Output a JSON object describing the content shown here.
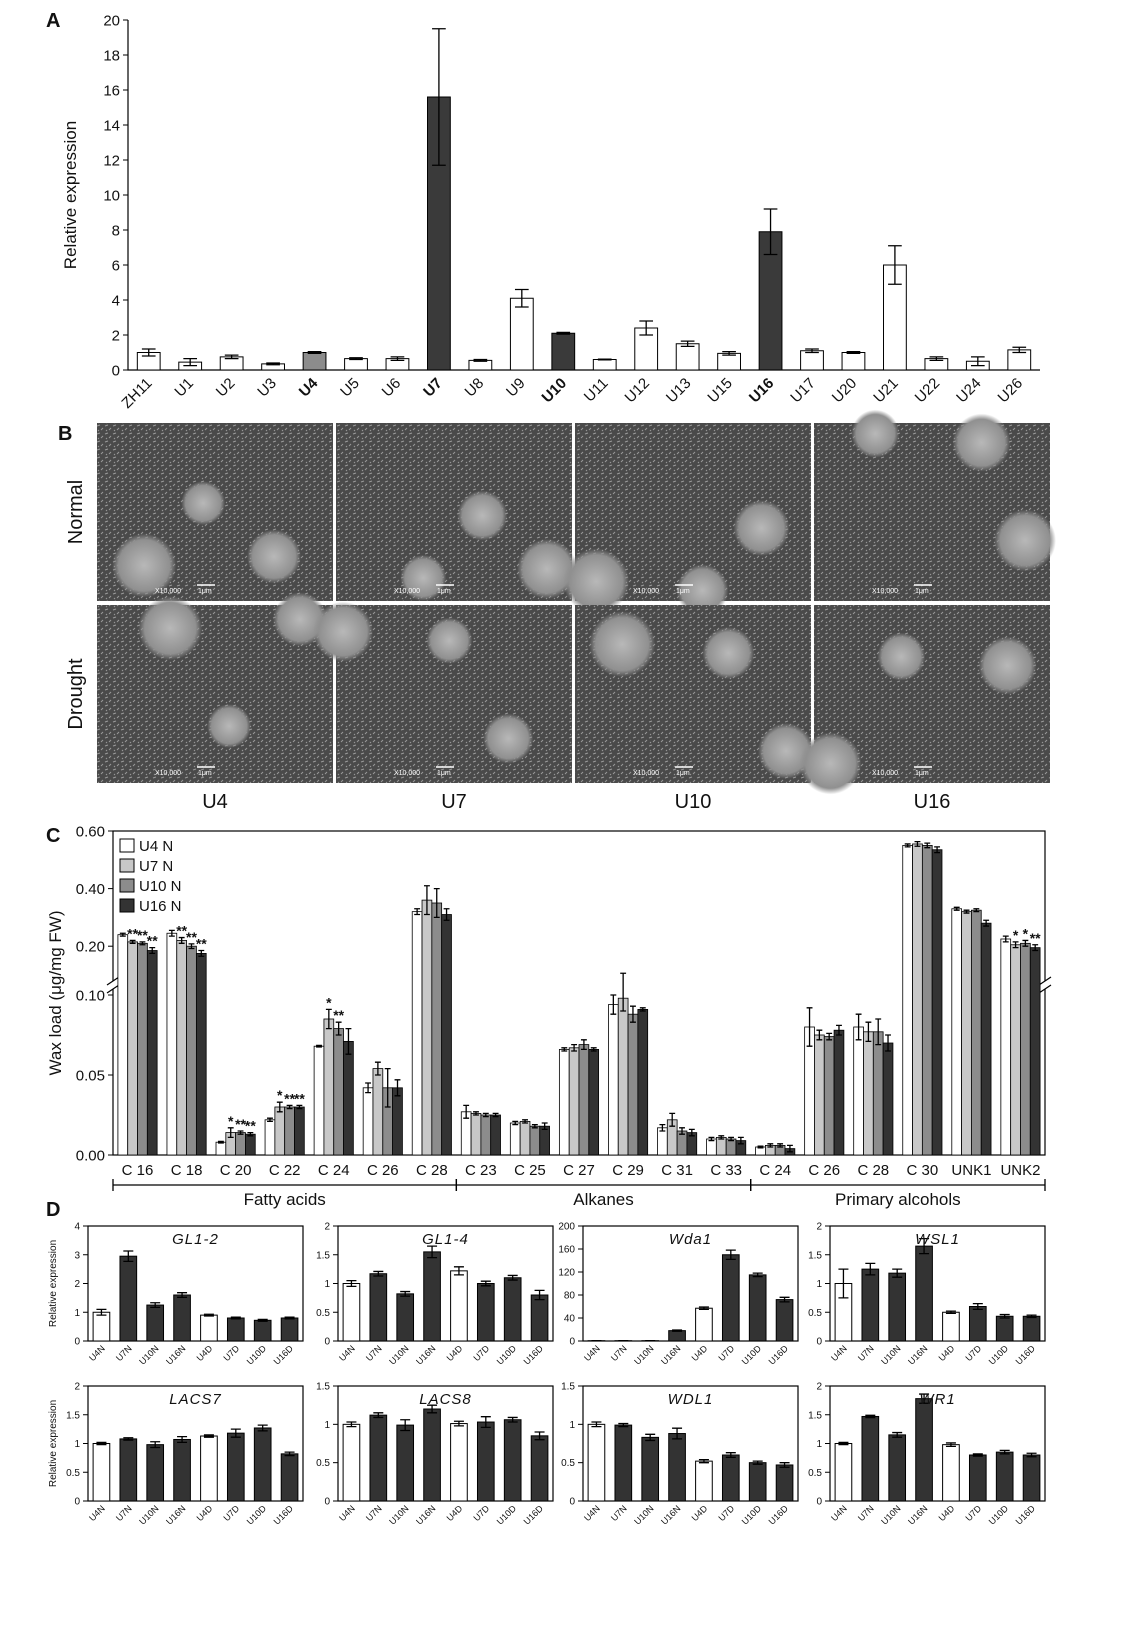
{
  "panel_labels": [
    "A",
    "B",
    "C",
    "D"
  ],
  "sem_images": {
    "rows": [
      "Normal",
      "Drought"
    ],
    "columns": [
      "U4",
      "U7",
      "U10",
      "U16"
    ],
    "magnification": "X10,000",
    "scale_bar": "1μm"
  },
  "chart_data": [
    {
      "type": "bar",
      "ylabel": "Relative expression",
      "categories": [
        "ZH11",
        "U1",
        "U2",
        "U3",
        "U4",
        "U5",
        "U6",
        "U7",
        "U8",
        "U9",
        "U10",
        "U11",
        "U12",
        "U13",
        "U15",
        "U16",
        "U17",
        "U20",
        "U21",
        "U22",
        "U24",
        "U26"
      ],
      "bold": [
        false,
        false,
        false,
        false,
        true,
        false,
        false,
        true,
        false,
        false,
        true,
        false,
        false,
        false,
        false,
        true,
        false,
        false,
        false,
        false,
        false,
        false
      ],
      "values": [
        1.0,
        0.45,
        0.75,
        0.35,
        1.0,
        0.65,
        0.65,
        15.6,
        0.55,
        4.1,
        2.1,
        0.6,
        2.4,
        1.5,
        0.95,
        7.9,
        1.1,
        1.0,
        6.0,
        0.65,
        0.5,
        1.15
      ],
      "errors": [
        0.2,
        0.2,
        0.1,
        0.05,
        0.05,
        0.05,
        0.1,
        3.9,
        0.05,
        0.5,
        0.05,
        0.02,
        0.4,
        0.15,
        0.1,
        1.3,
        0.1,
        0.05,
        1.1,
        0.1,
        0.25,
        0.15
      ],
      "colors": [
        "#ffffff",
        "#ffffff",
        "#ffffff",
        "#ffffff",
        "#8c8c8c",
        "#ffffff",
        "#ffffff",
        "#3a3a3a",
        "#ffffff",
        "#ffffff",
        "#3a3a3a",
        "#ffffff",
        "#ffffff",
        "#ffffff",
        "#ffffff",
        "#3a3a3a",
        "#ffffff",
        "#ffffff",
        "#ffffff",
        "#ffffff",
        "#ffffff",
        "#ffffff"
      ],
      "ylim": [
        0,
        20
      ],
      "yticks": [
        0,
        2,
        4,
        6,
        8,
        10,
        12,
        14,
        16,
        18,
        20
      ]
    },
    {
      "type": "grouped_bar",
      "ylabel": "Wax load (μg/mg FW)",
      "categories": [
        "C 16",
        "C 18",
        "C 20",
        "C 22",
        "C 24",
        "C 26",
        "C 28",
        "C 23",
        "C 25",
        "C 27",
        "C 29",
        "C 31",
        "C 33",
        "C 24",
        "C 26",
        "C 28",
        "C 30",
        "UNK1",
        "UNK2"
      ],
      "category_groups": [
        "Fatty acids",
        "Fatty acids",
        "Fatty acids",
        "Fatty acids",
        "Fatty acids",
        "Fatty acids",
        "Fatty acids",
        "Alkanes",
        "Alkanes",
        "Alkanes",
        "Alkanes",
        "Alkanes",
        "Alkanes",
        "Primary alcohols",
        "Primary alcohols",
        "Primary alcohols",
        "Primary alcohols",
        null,
        null
      ],
      "ylim": [
        0,
        0.6
      ],
      "axis_break": 0.1,
      "yticks": [
        {
          "value": 0,
          "label": "0.00"
        },
        {
          "value": 0.05,
          "label": "0.05"
        },
        {
          "value": 0.1,
          "label": "0.10"
        },
        {
          "value": 0.2,
          "label": "0.20"
        },
        {
          "value": 0.4,
          "label": "0.40"
        },
        {
          "value": 0.6,
          "label": "0.60"
        }
      ],
      "legend": "upper left",
      "series": [
        {
          "name": "U4 N",
          "color": "#ffffff",
          "values": [
            0.24,
            0.245,
            0.008,
            0.022,
            0.068,
            0.042,
            0.32,
            0.027,
            0.02,
            0.066,
            0.094,
            0.017,
            0.01,
            0.005,
            0.08,
            0.08,
            0.55,
            0.33,
            0.225
          ],
          "errors": [
            0.005,
            0.01,
            0.0005,
            0.001,
            0.0005,
            0.003,
            0.01,
            0.004,
            0.001,
            0.001,
            0.006,
            0.002,
            0.001,
            0.0005,
            0.012,
            0.008,
            0.005,
            0.005,
            0.01
          ],
          "significance": [
            null,
            null,
            null,
            null,
            null,
            null,
            null,
            null,
            null,
            null,
            null,
            null,
            null,
            null,
            null,
            null,
            null,
            null,
            null
          ]
        },
        {
          "name": "U7 N",
          "color": "#c8c8c8",
          "values": [
            0.215,
            0.22,
            0.014,
            0.03,
            0.085,
            0.054,
            0.36,
            0.026,
            0.021,
            0.067,
            0.098,
            0.022,
            0.011,
            0.006,
            0.075,
            0.077,
            0.555,
            0.32,
            0.205
          ],
          "errors": [
            0.005,
            0.01,
            0.003,
            0.003,
            0.006,
            0.004,
            0.05,
            0.001,
            0.001,
            0.002,
            0.008,
            0.004,
            0.001,
            0.001,
            0.003,
            0.006,
            0.008,
            0.005,
            0.01
          ],
          "significance": [
            "**",
            "**",
            "*",
            "*",
            "*",
            null,
            null,
            null,
            null,
            null,
            null,
            null,
            null,
            null,
            null,
            null,
            null,
            null,
            "*"
          ]
        },
        {
          "name": "U10 N",
          "color": "#8c8c8c",
          "values": [
            0.21,
            0.2,
            0.014,
            0.03,
            0.079,
            0.042,
            0.35,
            0.025,
            0.018,
            0.069,
            0.088,
            0.015,
            0.01,
            0.006,
            0.074,
            0.077,
            0.55,
            0.325,
            0.21
          ],
          "errors": [
            0.005,
            0.008,
            0.001,
            0.001,
            0.004,
            0.012,
            0.05,
            0.001,
            0.001,
            0.003,
            0.005,
            0.002,
            0.001,
            0.001,
            0.002,
            0.008,
            0.008,
            0.005,
            0.01
          ],
          "significance": [
            "**",
            "**",
            "**",
            "**",
            "**",
            null,
            null,
            null,
            null,
            null,
            null,
            null,
            null,
            null,
            null,
            null,
            null,
            null,
            "*"
          ]
        },
        {
          "name": "U16 N",
          "color": "#333333",
          "values": [
            0.185,
            0.175,
            0.013,
            0.03,
            0.071,
            0.042,
            0.31,
            0.025,
            0.018,
            0.066,
            0.091,
            0.014,
            0.009,
            0.004,
            0.078,
            0.07,
            0.535,
            0.28,
            0.195
          ],
          "errors": [
            0.01,
            0.01,
            0.001,
            0.001,
            0.008,
            0.005,
            0.02,
            0.001,
            0.002,
            0.001,
            0.001,
            0.002,
            0.002,
            0.002,
            0.003,
            0.005,
            0.01,
            0.01,
            0.01
          ],
          "significance": [
            "**",
            "**",
            "**",
            "**",
            null,
            null,
            null,
            null,
            null,
            null,
            null,
            null,
            null,
            null,
            null,
            null,
            null,
            null,
            "**"
          ]
        }
      ]
    },
    {
      "type": "bar",
      "title": "GL1-2",
      "ylabel": "Relative expression",
      "categories": [
        "U4N",
        "U7N",
        "U10N",
        "U16N",
        "U4D",
        "U7D",
        "U10D",
        "U16D"
      ],
      "values": [
        1.0,
        2.95,
        1.25,
        1.6,
        0.9,
        0.8,
        0.72,
        0.8
      ],
      "errors": [
        0.1,
        0.18,
        0.08,
        0.08,
        0.03,
        0.03,
        0.03,
        0.03
      ],
      "colors": [
        "#ffffff",
        "#333333",
        "#333333",
        "#333333",
        "#ffffff",
        "#333333",
        "#333333",
        "#333333"
      ],
      "ylim": [
        0,
        4
      ],
      "yticks": [
        0,
        1,
        2,
        3,
        4
      ]
    },
    {
      "type": "bar",
      "title": "GL1-4",
      "categories": [
        "U4N",
        "U7N",
        "U10N",
        "U16N",
        "U4D",
        "U7D",
        "U10D",
        "U16D"
      ],
      "values": [
        1.0,
        1.17,
        0.82,
        1.55,
        1.22,
        1.0,
        1.1,
        0.8
      ],
      "errors": [
        0.05,
        0.04,
        0.04,
        0.1,
        0.07,
        0.04,
        0.04,
        0.08
      ],
      "colors": [
        "#ffffff",
        "#333333",
        "#333333",
        "#333333",
        "#ffffff",
        "#333333",
        "#333333",
        "#333333"
      ],
      "ylim": [
        0,
        2
      ],
      "yticks": [
        0,
        0.5,
        1,
        1.5,
        2
      ]
    },
    {
      "type": "bar",
      "title": "Wda1",
      "categories": [
        "U4N",
        "U7N",
        "U10N",
        "U16N",
        "U4D",
        "U7D",
        "U10D",
        "U16D"
      ],
      "values": [
        0.5,
        0.5,
        0.5,
        18,
        57,
        150,
        115,
        72
      ],
      "errors": [
        0.1,
        0.1,
        0.1,
        1,
        2,
        8,
        3,
        4
      ],
      "colors": [
        "#ffffff",
        "#333333",
        "#333333",
        "#333333",
        "#ffffff",
        "#333333",
        "#333333",
        "#333333"
      ],
      "ylim": [
        0,
        200
      ],
      "yticks": [
        0,
        40,
        80,
        120,
        160,
        200
      ]
    },
    {
      "type": "bar",
      "title": "WSL1",
      "categories": [
        "U4N",
        "U7N",
        "U10N",
        "U16N",
        "U4D",
        "U7D",
        "U10D",
        "U16D"
      ],
      "values": [
        1.0,
        1.25,
        1.18,
        1.65,
        0.5,
        0.6,
        0.43,
        0.43
      ],
      "errors": [
        0.25,
        0.1,
        0.07,
        0.13,
        0.02,
        0.05,
        0.03,
        0.02
      ],
      "colors": [
        "#ffffff",
        "#333333",
        "#333333",
        "#333333",
        "#ffffff",
        "#333333",
        "#333333",
        "#333333"
      ],
      "ylim": [
        0,
        2
      ],
      "yticks": [
        0,
        0.5,
        1,
        1.5,
        2
      ]
    },
    {
      "type": "bar",
      "title": "LACS7",
      "ylabel": "Relative expression",
      "categories": [
        "U4N",
        "U7N",
        "U10N",
        "U16N",
        "U4D",
        "U7D",
        "U10D",
        "U16D"
      ],
      "values": [
        1.0,
        1.08,
        0.98,
        1.07,
        1.13,
        1.18,
        1.27,
        0.82
      ],
      "errors": [
        0.02,
        0.02,
        0.05,
        0.05,
        0.02,
        0.07,
        0.05,
        0.03
      ],
      "colors": [
        "#ffffff",
        "#333333",
        "#333333",
        "#333333",
        "#ffffff",
        "#333333",
        "#333333",
        "#333333"
      ],
      "ylim": [
        0,
        2
      ],
      "yticks": [
        0,
        0.5,
        1,
        1.5,
        2
      ]
    },
    {
      "type": "bar",
      "title": "LACS8",
      "categories": [
        "U4N",
        "U7N",
        "U10N",
        "U16N",
        "U4D",
        "U7D",
        "U10D",
        "U16D"
      ],
      "values": [
        1.0,
        1.12,
        0.99,
        1.2,
        1.01,
        1.03,
        1.06,
        0.85
      ],
      "errors": [
        0.03,
        0.03,
        0.07,
        0.05,
        0.03,
        0.07,
        0.03,
        0.05
      ],
      "colors": [
        "#ffffff",
        "#333333",
        "#333333",
        "#333333",
        "#ffffff",
        "#333333",
        "#333333",
        "#333333"
      ],
      "ylim": [
        0,
        1.5
      ],
      "yticks": [
        0,
        0.5,
        1,
        1.5
      ]
    },
    {
      "type": "bar",
      "title": "WDL1",
      "categories": [
        "U4N",
        "U7N",
        "U10N",
        "U16N",
        "U4D",
        "U7D",
        "U10D",
        "U16D"
      ],
      "values": [
        1.0,
        0.99,
        0.83,
        0.88,
        0.52,
        0.6,
        0.5,
        0.47
      ],
      "errors": [
        0.03,
        0.02,
        0.04,
        0.07,
        0.02,
        0.03,
        0.02,
        0.03
      ],
      "colors": [
        "#ffffff",
        "#333333",
        "#333333",
        "#333333",
        "#ffffff",
        "#333333",
        "#333333",
        "#333333"
      ],
      "ylim": [
        0,
        1.5
      ],
      "yticks": [
        0,
        0.5,
        1,
        1.5
      ]
    },
    {
      "type": "bar",
      "title": "WR1",
      "categories": [
        "U4N",
        "U7N",
        "U10N",
        "U16N",
        "U4D",
        "U7D",
        "U10D",
        "U16D"
      ],
      "values": [
        1.0,
        1.47,
        1.15,
        1.78,
        0.98,
        0.8,
        0.85,
        0.8
      ],
      "errors": [
        0.02,
        0.02,
        0.04,
        0.08,
        0.03,
        0.02,
        0.03,
        0.03
      ],
      "colors": [
        "#ffffff",
        "#333333",
        "#333333",
        "#333333",
        "#ffffff",
        "#333333",
        "#333333",
        "#333333"
      ],
      "ylim": [
        0,
        2
      ],
      "yticks": [
        0,
        0.5,
        1,
        1.5,
        2
      ]
    }
  ]
}
